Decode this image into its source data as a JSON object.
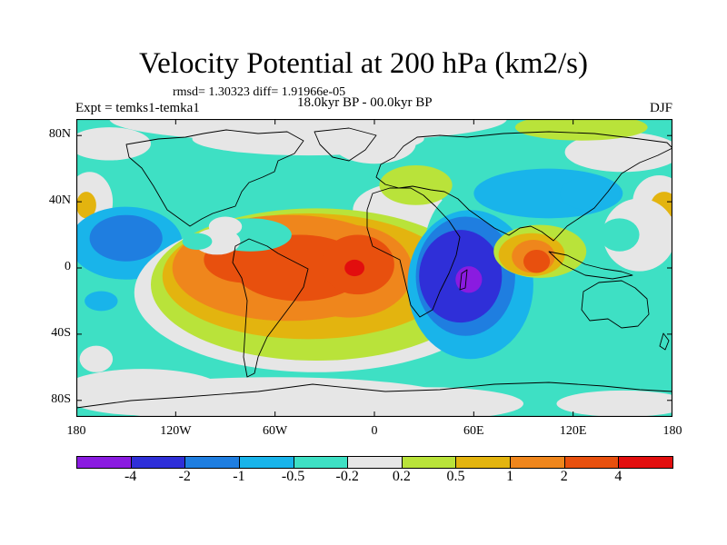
{
  "title": "Velocity Potential at 200 hPa (km2/s)",
  "stats_line": "rmsd= 1.30323 diff= 1.91966e-05",
  "experiment": "Expt = temks1-temka1",
  "period": "18.0kyr BP - 00.0kyr BP",
  "season": "DJF",
  "axes": {
    "lat_ticks": [
      {
        "value": 80,
        "label": "80N"
      },
      {
        "value": 40,
        "label": "40N"
      },
      {
        "value": 0,
        "label": "0"
      },
      {
        "value": -40,
        "label": "40S"
      },
      {
        "value": -80,
        "label": "80S"
      }
    ],
    "lon_ticks": [
      {
        "value": -180,
        "label": "180"
      },
      {
        "value": -120,
        "label": "120W"
      },
      {
        "value": -60,
        "label": "60W"
      },
      {
        "value": 0,
        "label": "0"
      },
      {
        "value": 60,
        "label": "60E"
      },
      {
        "value": 120,
        "label": "120E"
      },
      {
        "value": 180,
        "label": "180"
      }
    ],
    "lon_range": [
      -180,
      180
    ],
    "lat_range": [
      -90,
      90
    ]
  },
  "colorbar": {
    "colors": [
      "#8a1be0",
      "#2f2fd8",
      "#1f7ee0",
      "#19b4ea",
      "#3ee0c4",
      "#e6e6e6",
      "#b9e33a",
      "#e3b40f",
      "#ef861c",
      "#e8500e",
      "#e20e0e"
    ],
    "labels": [
      "-4",
      "-2",
      "-1",
      "-0.5",
      "-0.2",
      "0.2",
      "0.5",
      "1",
      "2",
      "4"
    ]
  },
  "field": {
    "background_color": "#3ee0c4",
    "regions": [
      {
        "lon": -160,
        "lat": 75,
        "rx": 25,
        "ry": 10,
        "color": "#e6e6e6"
      },
      {
        "lon": -40,
        "lat": 78,
        "rx": 70,
        "ry": 10,
        "color": "#e6e6e6"
      },
      {
        "lon": -40,
        "lat": 90,
        "rx": 120,
        "ry": 14,
        "color": "#e6e6e6"
      },
      {
        "lon": 0,
        "lat": 75,
        "rx": 25,
        "ry": 12,
        "color": "#e6e6e6"
      },
      {
        "lon": 150,
        "lat": 70,
        "rx": 35,
        "ry": 12,
        "color": "#e6e6e6"
      },
      {
        "lon": 125,
        "lat": 85,
        "rx": 40,
        "ry": 8,
        "color": "#b9e33a"
      },
      {
        "lon": -172,
        "lat": 40,
        "rx": 14,
        "ry": 18,
        "color": "#e6e6e6"
      },
      {
        "lon": -174,
        "lat": 38,
        "rx": 6,
        "ry": 8,
        "color": "#e3b40f"
      },
      {
        "lon": 172,
        "lat": 40,
        "rx": 16,
        "ry": 16,
        "color": "#e6e6e6"
      },
      {
        "lon": 175,
        "lat": 38,
        "rx": 8,
        "ry": 8,
        "color": "#e3b40f"
      },
      {
        "lon": -150,
        "lat": 15,
        "rx": 34,
        "ry": 22,
        "color": "#19b4ea"
      },
      {
        "lon": -150,
        "lat": 18,
        "rx": 22,
        "ry": 14,
        "color": "#1f7ee0"
      },
      {
        "lon": -165,
        "lat": -20,
        "rx": 10,
        "ry": 6,
        "color": "#19b4ea"
      },
      {
        "lon": -168,
        "lat": -55,
        "rx": 10,
        "ry": 8,
        "color": "#e6e6e6"
      },
      {
        "lon": -140,
        "lat": -75,
        "rx": 50,
        "ry": 14,
        "color": "#e6e6e6"
      },
      {
        "lon": -60,
        "lat": -80,
        "rx": 110,
        "ry": 14,
        "color": "#e6e6e6"
      },
      {
        "lon": 30,
        "lat": -82,
        "rx": 60,
        "ry": 10,
        "color": "#e6e6e6"
      },
      {
        "lon": 150,
        "lat": -82,
        "rx": 40,
        "ry": 8,
        "color": "#e6e6e6"
      },
      {
        "lon": -35,
        "lat": -15,
        "rx": 110,
        "ry": 48,
        "color": "#e6e6e6"
      },
      {
        "lon": 15,
        "lat": 35,
        "rx": 28,
        "ry": 16,
        "color": "#e6e6e6"
      },
      {
        "lon": 25,
        "lat": 50,
        "rx": 22,
        "ry": 12,
        "color": "#b9e33a"
      },
      {
        "lon": -35,
        "lat": -10,
        "rx": 100,
        "ry": 46,
        "color": "#b9e33a"
      },
      {
        "lon": -40,
        "lat": -5,
        "rx": 88,
        "ry": 38,
        "color": "#e3b40f"
      },
      {
        "lon": -52,
        "lat": 0,
        "rx": 70,
        "ry": 32,
        "color": "#ef861c"
      },
      {
        "lon": -15,
        "lat": -2,
        "rx": 38,
        "ry": 28,
        "color": "#ef861c"
      },
      {
        "lon": -78,
        "lat": 5,
        "rx": 25,
        "ry": 14,
        "color": "#e8500e"
      },
      {
        "lon": -45,
        "lat": 0,
        "rx": 40,
        "ry": 20,
        "color": "#e8500e"
      },
      {
        "lon": -10,
        "lat": 2,
        "rx": 22,
        "ry": 18,
        "color": "#e8500e"
      },
      {
        "lon": -12,
        "lat": 0,
        "rx": 6,
        "ry": 5,
        "color": "#e20e0e"
      },
      {
        "lon": -75,
        "lat": 20,
        "rx": 25,
        "ry": 10,
        "color": "#3ee0c4"
      },
      {
        "lon": -95,
        "lat": 16,
        "rx": 14,
        "ry": 8,
        "color": "#e6e6e6"
      },
      {
        "lon": -107,
        "lat": 16,
        "rx": 9,
        "ry": 5,
        "color": "#3ee0c4"
      },
      {
        "lon": -90,
        "lat": 25,
        "rx": 10,
        "ry": 6,
        "color": "#e6e6e6"
      },
      {
        "lon": 60,
        "lat": 10,
        "rx": 30,
        "ry": 40,
        "color": "#3ee0c4"
      },
      {
        "lon": 58,
        "lat": -10,
        "rx": 38,
        "ry": 45,
        "color": "#19b4ea"
      },
      {
        "lon": 55,
        "lat": -5,
        "rx": 30,
        "ry": 36,
        "color": "#1f7ee0"
      },
      {
        "lon": 52,
        "lat": -5,
        "rx": 25,
        "ry": 28,
        "color": "#2f2fd8"
      },
      {
        "lon": 57,
        "lat": -7,
        "rx": 8,
        "ry": 8,
        "color": "#8a1be0"
      },
      {
        "lon": 100,
        "lat": 10,
        "rx": 28,
        "ry": 16,
        "color": "#b9e33a"
      },
      {
        "lon": 95,
        "lat": 8,
        "rx": 20,
        "ry": 13,
        "color": "#e3b40f"
      },
      {
        "lon": 96,
        "lat": 7,
        "rx": 13,
        "ry": 10,
        "color": "#ef861c"
      },
      {
        "lon": 98,
        "lat": 4,
        "rx": 8,
        "ry": 7,
        "color": "#e8500e"
      },
      {
        "lon": 105,
        "lat": 45,
        "rx": 45,
        "ry": 15,
        "color": "#19b4ea"
      },
      {
        "lon": 130,
        "lat": 45,
        "rx": 18,
        "ry": 10,
        "color": "#19b4ea"
      },
      {
        "lon": 160,
        "lat": 20,
        "rx": 22,
        "ry": 22,
        "color": "#e6e6e6"
      },
      {
        "lon": 148,
        "lat": 20,
        "rx": 12,
        "ry": 10,
        "color": "#3ee0c4"
      },
      {
        "lon": 170,
        "lat": -15,
        "rx": 15,
        "ry": 10,
        "color": "#3ee0c4"
      }
    ]
  }
}
